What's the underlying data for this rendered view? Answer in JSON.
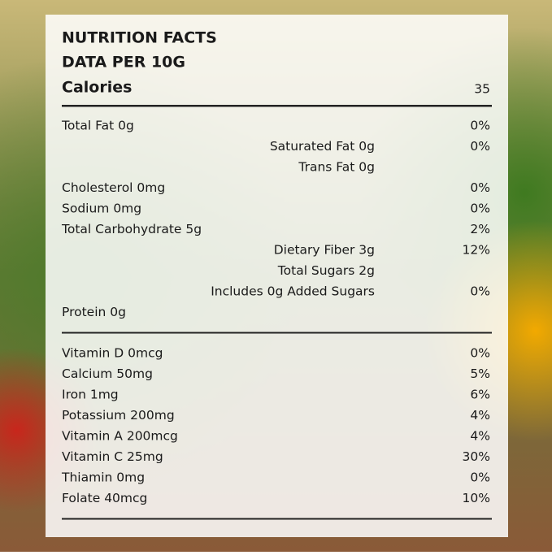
{
  "header": {
    "title": "NUTRITION FACTS",
    "subtitle": "DATA PER 10G"
  },
  "calories": {
    "label": "Calories",
    "value": "35"
  },
  "sections": [
    {
      "rows": [
        {
          "label": "Total Fat 0g",
          "daily_value": "0%",
          "subrows": [
            {
              "label": "Saturated Fat 0g",
              "daily_value": "0%"
            },
            {
              "label": "Trans Fat 0g"
            }
          ]
        },
        {
          "label": "Cholesterol 0mg",
          "daily_value": "0%"
        },
        {
          "label": "Sodium 0mg",
          "daily_value": "0%"
        },
        {
          "label": "Total Carbohydrate 5g",
          "daily_value": "2%",
          "subrows": [
            {
              "label": "Dietary Fiber 3g",
              "daily_value": "12%"
            },
            {
              "label": "Total Sugars 2g"
            },
            {
              "label": "Includes 0g Added Sugars",
              "daily_value": "0%"
            }
          ]
        },
        {
          "label": "Protein 0g"
        }
      ]
    },
    {
      "rows": [
        {
          "label": "Vitamin D 0mcg",
          "daily_value": "0%"
        },
        {
          "label": "Calcium 50mg",
          "daily_value": "5%"
        },
        {
          "label": "Iron 1mg",
          "daily_value": "6%"
        },
        {
          "label": "Potassium 200mg",
          "daily_value": "4%"
        },
        {
          "label": "Vitamin A 200mcg",
          "daily_value": "4%"
        },
        {
          "label": "Vitamin C 25mg",
          "daily_value": "30%"
        },
        {
          "label": "Thiamin 0mg",
          "daily_value": "0%"
        },
        {
          "label": "Folate 40mcg",
          "daily_value": "10%"
        }
      ]
    }
  ]
}
